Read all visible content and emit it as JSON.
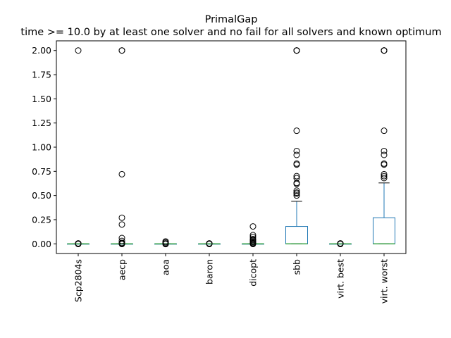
{
  "chart_data": {
    "type": "box",
    "title": "PrimalGap",
    "subtitle": "time >= 10.0 by at least one solver and no fail for all solvers and known optimum",
    "xlabel": "",
    "ylabel": "",
    "ylim": [
      -0.1,
      2.1
    ],
    "yticks": [
      "0.00",
      "0.25",
      "0.50",
      "0.75",
      "1.00",
      "1.25",
      "1.50",
      "1.75",
      "2.00"
    ],
    "categories": [
      "Scp2804s",
      "aecp",
      "aoa",
      "baron",
      "dicopt",
      "sbb",
      "virt. best",
      "virt. worst"
    ],
    "grid": false,
    "colors": {
      "box": "#1f77b4",
      "median": "#2ca02c",
      "whisker": "#000000",
      "flier": "#000000"
    },
    "boxes": [
      {
        "q1": 0.0,
        "median": 0.0,
        "q3": 0.0,
        "whisker_low": 0.0,
        "whisker_high": 0.0,
        "fliers": [
          2.0,
          0.005,
          0.003,
          0.001,
          -0.002
        ]
      },
      {
        "q1": 0.0,
        "median": 0.0,
        "q3": 0.0,
        "whisker_low": 0.0,
        "whisker_high": 0.0,
        "fliers": [
          2.0,
          2.0,
          0.72,
          0.27,
          0.2,
          0.06,
          0.03,
          0.01,
          0.005,
          0.002,
          -0.002
        ]
      },
      {
        "q1": 0.0,
        "median": 0.0,
        "q3": 0.0,
        "whisker_low": 0.0,
        "whisker_high": 0.0,
        "fliers": [
          0.025,
          0.015,
          0.005,
          -0.003
        ]
      },
      {
        "q1": 0.0,
        "median": 0.0,
        "q3": 0.0,
        "whisker_low": 0.0,
        "whisker_high": 0.0,
        "fliers": [
          0.005,
          0.002,
          -0.002
        ]
      },
      {
        "q1": 0.0,
        "median": 0.0,
        "q3": 0.0,
        "whisker_low": 0.0,
        "whisker_high": 0.0,
        "fliers": [
          0.18,
          0.09,
          0.07,
          0.05,
          0.04,
          0.03,
          0.02,
          0.01,
          0.005,
          -0.002
        ]
      },
      {
        "q1": 0.0,
        "median": 0.0,
        "q3": 0.18,
        "whisker_low": 0.0,
        "whisker_high": 0.44,
        "fliers": [
          2.0,
          2.0,
          2.0,
          2.0,
          1.17,
          0.96,
          0.92,
          0.83,
          0.82,
          0.7,
          0.68,
          0.63,
          0.62,
          0.55,
          0.53,
          0.52,
          0.5
        ]
      },
      {
        "q1": 0.0,
        "median": 0.0,
        "q3": 0.0,
        "whisker_low": 0.0,
        "whisker_high": 0.0,
        "fliers": [
          0.005,
          0.002,
          -0.002
        ]
      },
      {
        "q1": 0.0,
        "median": 0.0,
        "q3": 0.27,
        "whisker_low": 0.0,
        "whisker_high": 0.63,
        "fliers": [
          2.0,
          2.0,
          2.0,
          2.0,
          1.17,
          0.96,
          0.92,
          0.83,
          0.82,
          0.72,
          0.7,
          0.68
        ]
      }
    ]
  }
}
